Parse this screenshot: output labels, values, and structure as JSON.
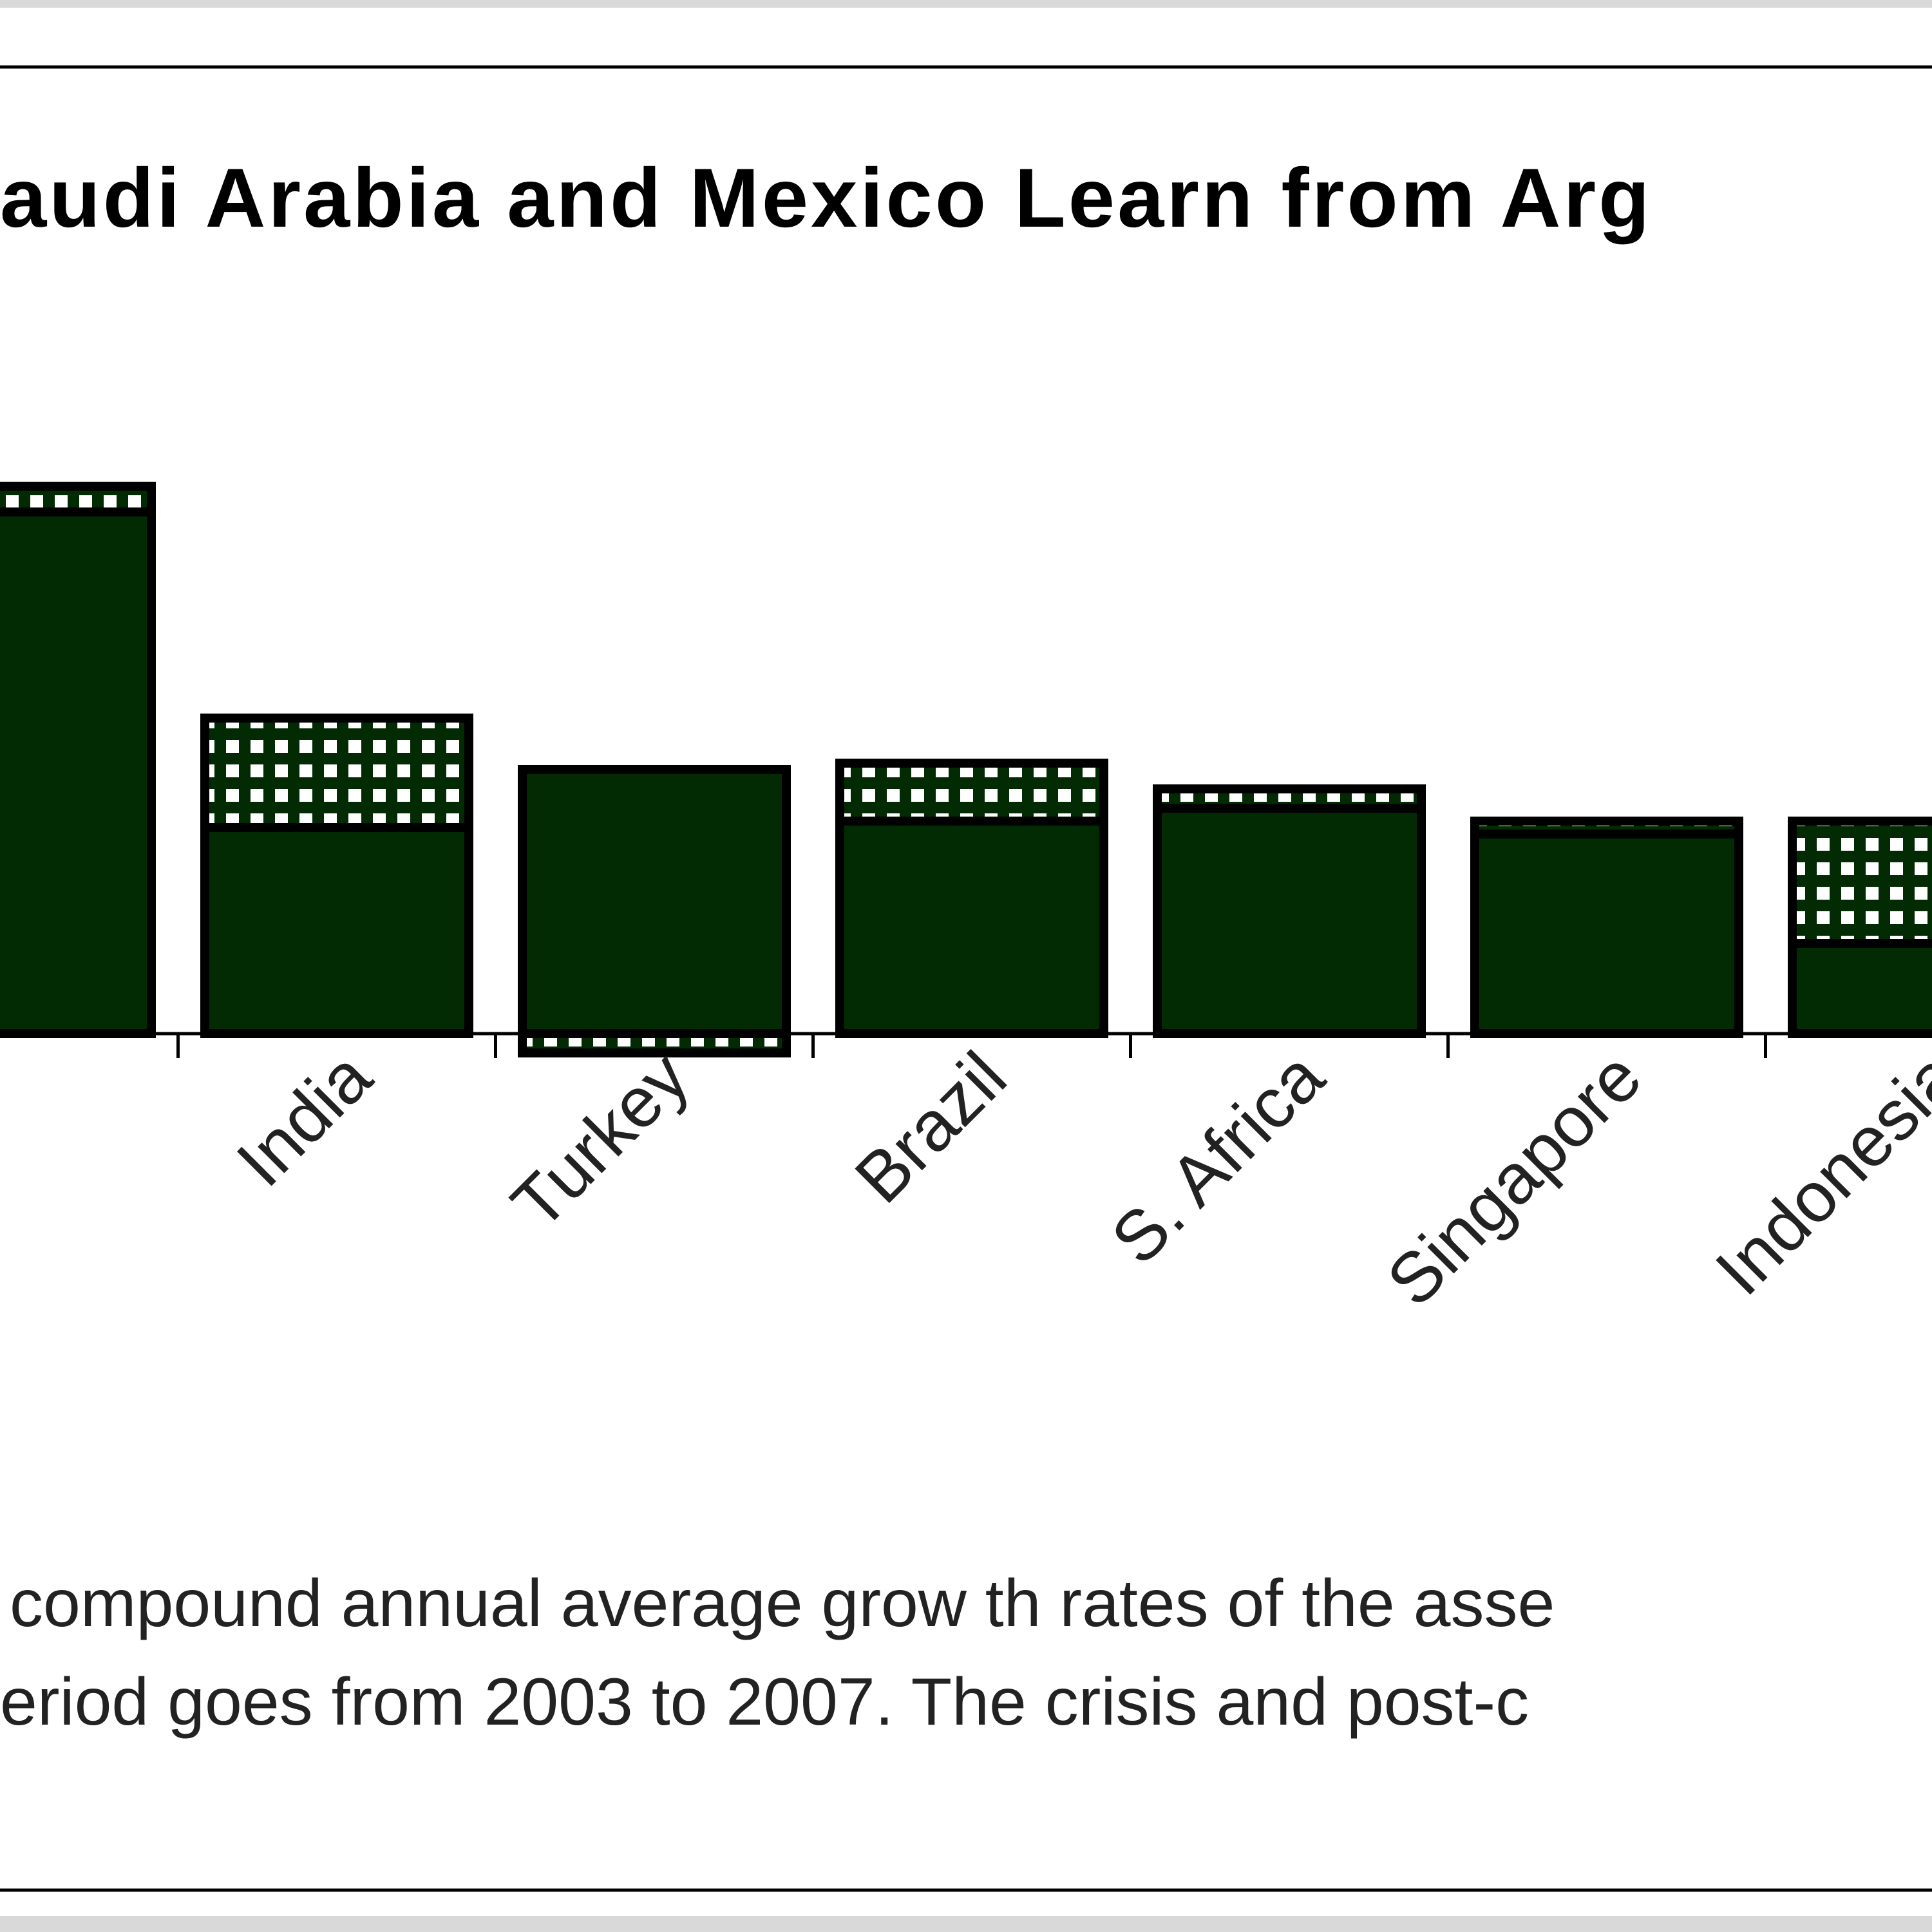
{
  "colors": {
    "bar_fill": "#022b03",
    "frame_top": "#d9d9d9",
    "frame_line": "#000000"
  },
  "chart_data": {
    "type": "bar",
    "stacked": true,
    "title": "audi Arabia and Mexico Learn from Arg",
    "categories": [
      "",
      "India",
      "Turkey",
      "Brazil",
      "S. Africa",
      "Singapore",
      "Indonesia"
    ],
    "series": [
      {
        "pattern": "solid",
        "values": [
          8.1,
          3.2,
          4.1,
          3.3,
          3.5,
          3.1,
          1.4
        ]
      },
      {
        "pattern": "grid",
        "values": [
          0.4,
          1.7,
          -0.3,
          0.9,
          0.3,
          0.2,
          1.9
        ]
      }
    ],
    "ylim": [
      -0.5,
      8.6
    ]
  },
  "notes": [
    "compound annual average grow th rates of the asse",
    "eriod goes from  2003 to 2007. The crisis and post-c"
  ]
}
